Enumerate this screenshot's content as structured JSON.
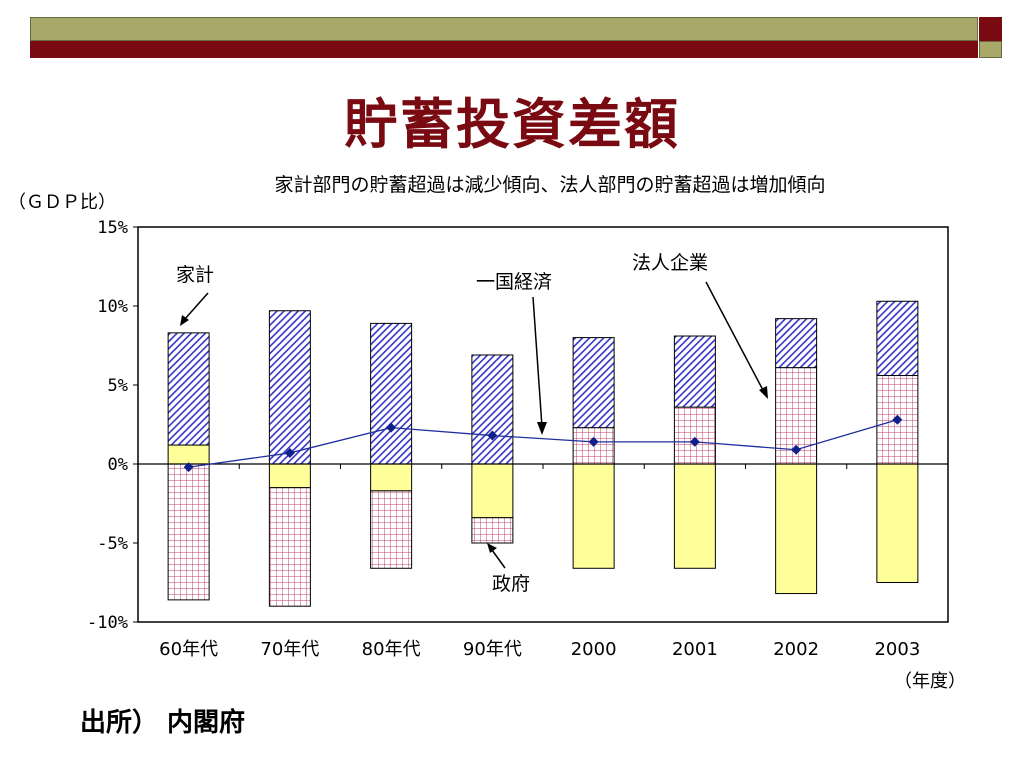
{
  "title": "貯蓄投資差額",
  "source": "出所） 内閣府",
  "colors": {
    "band_olive": "#a8a868",
    "band_maroon": "#7a0a12",
    "household": "#5555dd",
    "corporate": "#c0406a",
    "government": "#ffff99",
    "economy": "#2030a0"
  },
  "chart_data": {
    "type": "bar",
    "subtitle": "家計部門の貯蓄超過は減少傾向、法人部門の貯蓄超過は増加傾向",
    "ylabel": "（ＧＤＰ比）",
    "xlabel": "（年度）",
    "ylim": [
      -10,
      15
    ],
    "yticks": [
      "15%",
      "10%",
      "5%",
      "0%",
      "-5%",
      "-10%"
    ],
    "categories": [
      "60年代",
      "70年代",
      "80年代",
      "90年代",
      "2000",
      "2001",
      "2002",
      "2003"
    ],
    "series": [
      {
        "name": "家計",
        "values": [
          7.1,
          9.7,
          8.9,
          6.9,
          5.7,
          4.5,
          3.1,
          4.7
        ]
      },
      {
        "name": "法人企業",
        "values": [
          -8.6,
          -7.5,
          -4.9,
          -1.6,
          2.3,
          3.6,
          6.1,
          5.6
        ]
      },
      {
        "name": "政府",
        "values": [
          1.2,
          -1.5,
          -1.7,
          -3.4,
          -6.6,
          -6.6,
          -8.2,
          -7.5
        ]
      },
      {
        "name": "一国経済",
        "values": [
          -0.2,
          0.7,
          2.3,
          1.8,
          1.4,
          1.4,
          0.9,
          2.8
        ]
      }
    ],
    "annotations": [
      "家計",
      "一国経済",
      "法人企業",
      "政府"
    ],
    "legend": "none"
  }
}
